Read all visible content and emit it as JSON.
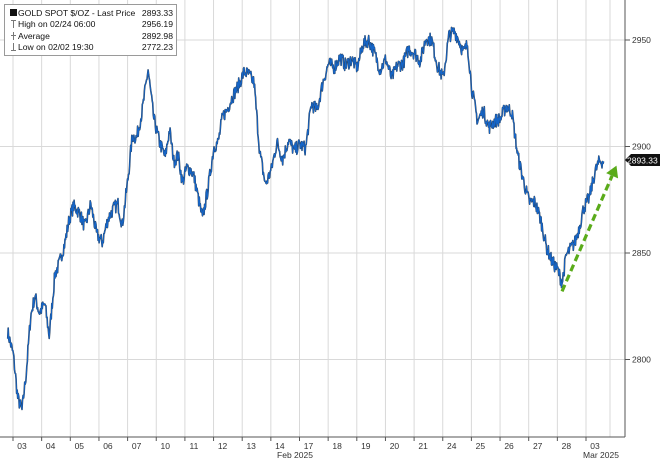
{
  "legend": {
    "title": "GOLD SPOT $/OZ - Last Price",
    "last_value": "2893.33",
    "high_label": "High on 02/24 06:00",
    "high_value": "2956.19",
    "average_label": "Average",
    "average_value": "2892.98",
    "low_label": "Low on 02/02 19:30",
    "low_value": "2772.23"
  },
  "colors": {
    "series": "#1565c8",
    "series_dark": "#0b1d33",
    "arrow": "#5aab1a",
    "grid": "#d9d9d9",
    "axis": "#555555"
  },
  "chart_data": {
    "type": "line",
    "title": "GOLD SPOT $/OZ - Last Price",
    "ylim": [
      2765,
      3000
    ],
    "yticks": [
      2800,
      2850,
      2900,
      2950
    ],
    "ytick_labels": [
      "2800",
      "2850",
      "2900",
      "2950"
    ],
    "xticks": [
      0,
      1,
      2,
      3,
      4,
      5,
      6,
      7,
      8,
      9,
      10,
      11,
      12,
      13,
      14,
      15,
      16,
      17,
      18,
      19,
      20
    ],
    "xtick_labels": [
      "03",
      "04",
      "05",
      "06",
      "07",
      "10",
      "11",
      "12",
      "13",
      "14",
      "17",
      "18",
      "19",
      "20",
      "21",
      "24",
      "25",
      "26",
      "27",
      "28",
      "03"
    ],
    "period_labels": [
      "Feb 2025",
      "Mar 2025"
    ],
    "last_price_label": "2893.33",
    "grid": true,
    "legend_position": "top-left",
    "series": [
      {
        "name": "GOLD SPOT $/OZ - Last Price",
        "x": [
          -0.5,
          -0.3,
          -0.15,
          0.0,
          0.15,
          0.3,
          0.45,
          0.6,
          0.8,
          0.95,
          1.15,
          1.3,
          1.5,
          1.65,
          1.8,
          2.0,
          2.2,
          2.4,
          2.6,
          2.8,
          3.0,
          3.2,
          3.35,
          3.5,
          3.7,
          3.85,
          4.0,
          4.2,
          4.4,
          4.6,
          4.8,
          5.0,
          5.15,
          5.3,
          5.45,
          5.6,
          5.75,
          5.9,
          6.0,
          6.15,
          6.3,
          6.5,
          6.7,
          6.85,
          7.0,
          7.15,
          7.3,
          7.45,
          7.6,
          7.75,
          7.9,
          8.1,
          8.3,
          8.5,
          8.7,
          8.9,
          9.1,
          9.3,
          9.5,
          9.7,
          9.9,
          10.1,
          10.3,
          10.5,
          10.7,
          10.9,
          11.1,
          11.3,
          11.5,
          11.7,
          11.9,
          12.1,
          12.3,
          12.5,
          12.7,
          12.9,
          13.1,
          13.3,
          13.5,
          13.7,
          13.9,
          14.1,
          14.3,
          14.5,
          14.7,
          14.9,
          15.1,
          15.25,
          15.4,
          15.55,
          15.7,
          15.9,
          16.1,
          16.3,
          16.5,
          16.7,
          16.9,
          17.1,
          17.3,
          17.5,
          17.7,
          17.9,
          18.1,
          18.3,
          18.5,
          18.7,
          18.85,
          19.0,
          19.15,
          19.3,
          19.45,
          19.6,
          19.8,
          20.0,
          20.15,
          20.3
        ],
        "y": [
          2813,
          2802,
          2782,
          2776,
          2794,
          2820,
          2830,
          2822,
          2826,
          2811,
          2840,
          2845,
          2855,
          2866,
          2872,
          2869,
          2862,
          2873,
          2859,
          2855,
          2866,
          2871,
          2873,
          2863,
          2885,
          2905,
          2904,
          2917,
          2936,
          2913,
          2902,
          2895,
          2908,
          2893,
          2896,
          2883,
          2890,
          2889,
          2886,
          2876,
          2866,
          2881,
          2900,
          2902,
          2914,
          2917,
          2922,
          2926,
          2930,
          2935,
          2934,
          2930,
          2897,
          2882,
          2889,
          2902,
          2894,
          2903,
          2898,
          2901,
          2899,
          2920,
          2917,
          2930,
          2939,
          2937,
          2942,
          2938,
          2941,
          2937,
          2948,
          2950,
          2944,
          2936,
          2941,
          2932,
          2938,
          2939,
          2946,
          2944,
          2940,
          2951,
          2950,
          2938,
          2932,
          2952,
          2954,
          2950,
          2944,
          2948,
          2927,
          2912,
          2917,
          2909,
          2912,
          2913,
          2919,
          2916,
          2896,
          2884,
          2874,
          2874,
          2866,
          2853,
          2846,
          2842,
          2836,
          2849,
          2852,
          2855,
          2862,
          2871,
          2876,
          2888,
          2893,
          2893
        ]
      }
    ],
    "annotation": {
      "type": "arrow",
      "from": [
        18.85,
        2832
      ],
      "to": [
        20.75,
        2891
      ],
      "color": "#5aab1a",
      "style": "dashed"
    }
  }
}
